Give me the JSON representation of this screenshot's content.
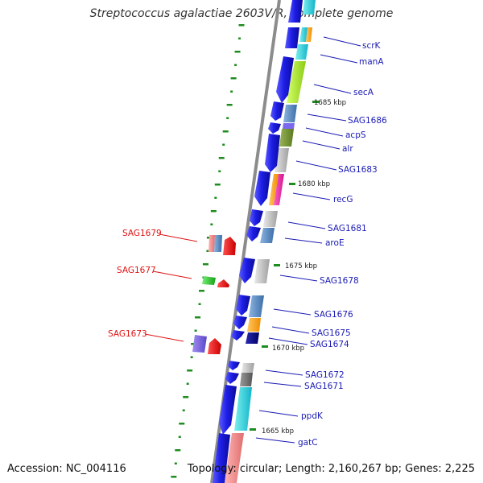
{
  "title": "Streptococcus agalactiae 2603V/R, complete genome",
  "footer": {
    "accession": "Accession: NC_004116",
    "summary": "Topology: circular; Length: 2,160,267 bp; Genes: 2,225"
  },
  "kbp_labels": [
    "1685 kbp",
    "1680 kbp",
    "1675 kbp",
    "1670 kbp",
    "1665 kbp"
  ],
  "gene_labels_right": [
    "scrK",
    "manA",
    "secA",
    "SAG1686",
    "acpS",
    "alr",
    "SAG1683",
    "recG",
    "SAG1681",
    "aroE",
    "SAG1678",
    "SAG1676",
    "SAG1675",
    "SAG1674",
    "SAG1672",
    "SAG1671",
    "ppdK",
    "gatC"
  ],
  "gene_labels_left": [
    "SAG1679",
    "SAG1677",
    "SAG1673"
  ],
  "colors": {
    "forward_gene": "#1e1ee6",
    "reverse_gene_red": "#e01414",
    "label_blue": "#1a1ab4",
    "label_red": "#e01414",
    "backbone": "#8c8c8c",
    "gc_tick": "#1e8c1e"
  }
}
